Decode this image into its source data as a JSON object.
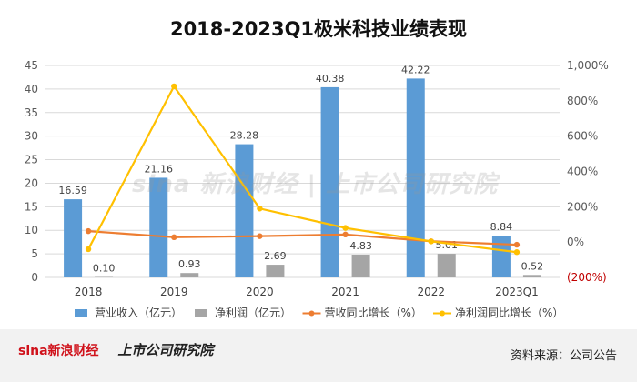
{
  "chart_data": {
    "type": "bar",
    "title": "2018-2023Q1极米科技业绩表现",
    "categories": [
      "2018",
      "2019",
      "2020",
      "2021",
      "2022",
      "2023Q1"
    ],
    "series": [
      {
        "name": "营业收入（亿元）",
        "type": "bar",
        "axis": "left",
        "values": [
          16.59,
          21.16,
          28.28,
          40.38,
          42.22,
          8.84
        ],
        "color": "#5b9bd5"
      },
      {
        "name": "净利润（亿元）",
        "type": "bar",
        "axis": "left",
        "values": [
          0.1,
          0.93,
          2.69,
          4.83,
          5.01,
          0.52
        ],
        "color": "#a5a5a5"
      },
      {
        "name": "营收同比增长（%）",
        "type": "line",
        "axis": "right",
        "values": [
          62,
          27.5,
          33.6,
          42.8,
          4.6,
          -15
        ],
        "color": "#ed7d31"
      },
      {
        "name": "净利润同比增长（%）",
        "type": "line",
        "axis": "right",
        "values": [
          -40,
          882,
          190,
          80,
          4,
          -57
        ],
        "color": "#ffc000"
      }
    ],
    "left_axis": {
      "min": 0,
      "max": 45,
      "ticks": [
        "0",
        "5",
        "10",
        "15",
        "20",
        "25",
        "30",
        "35",
        "40",
        "45"
      ]
    },
    "right_axis": {
      "min": -200,
      "max": 1000,
      "ticks": [
        "(200%)",
        "0%",
        "200%",
        "400%",
        "600%",
        "800%",
        "1,000%"
      ],
      "negative_color": "#c00000"
    },
    "grid": true,
    "legend_position": "bottom"
  },
  "watermark": "sina 新浪财经 | 上市公司研究院",
  "footer": {
    "logo_a": "sina新浪财经",
    "logo_b": "上市公司研究院",
    "source": "资料来源：公司公告"
  }
}
